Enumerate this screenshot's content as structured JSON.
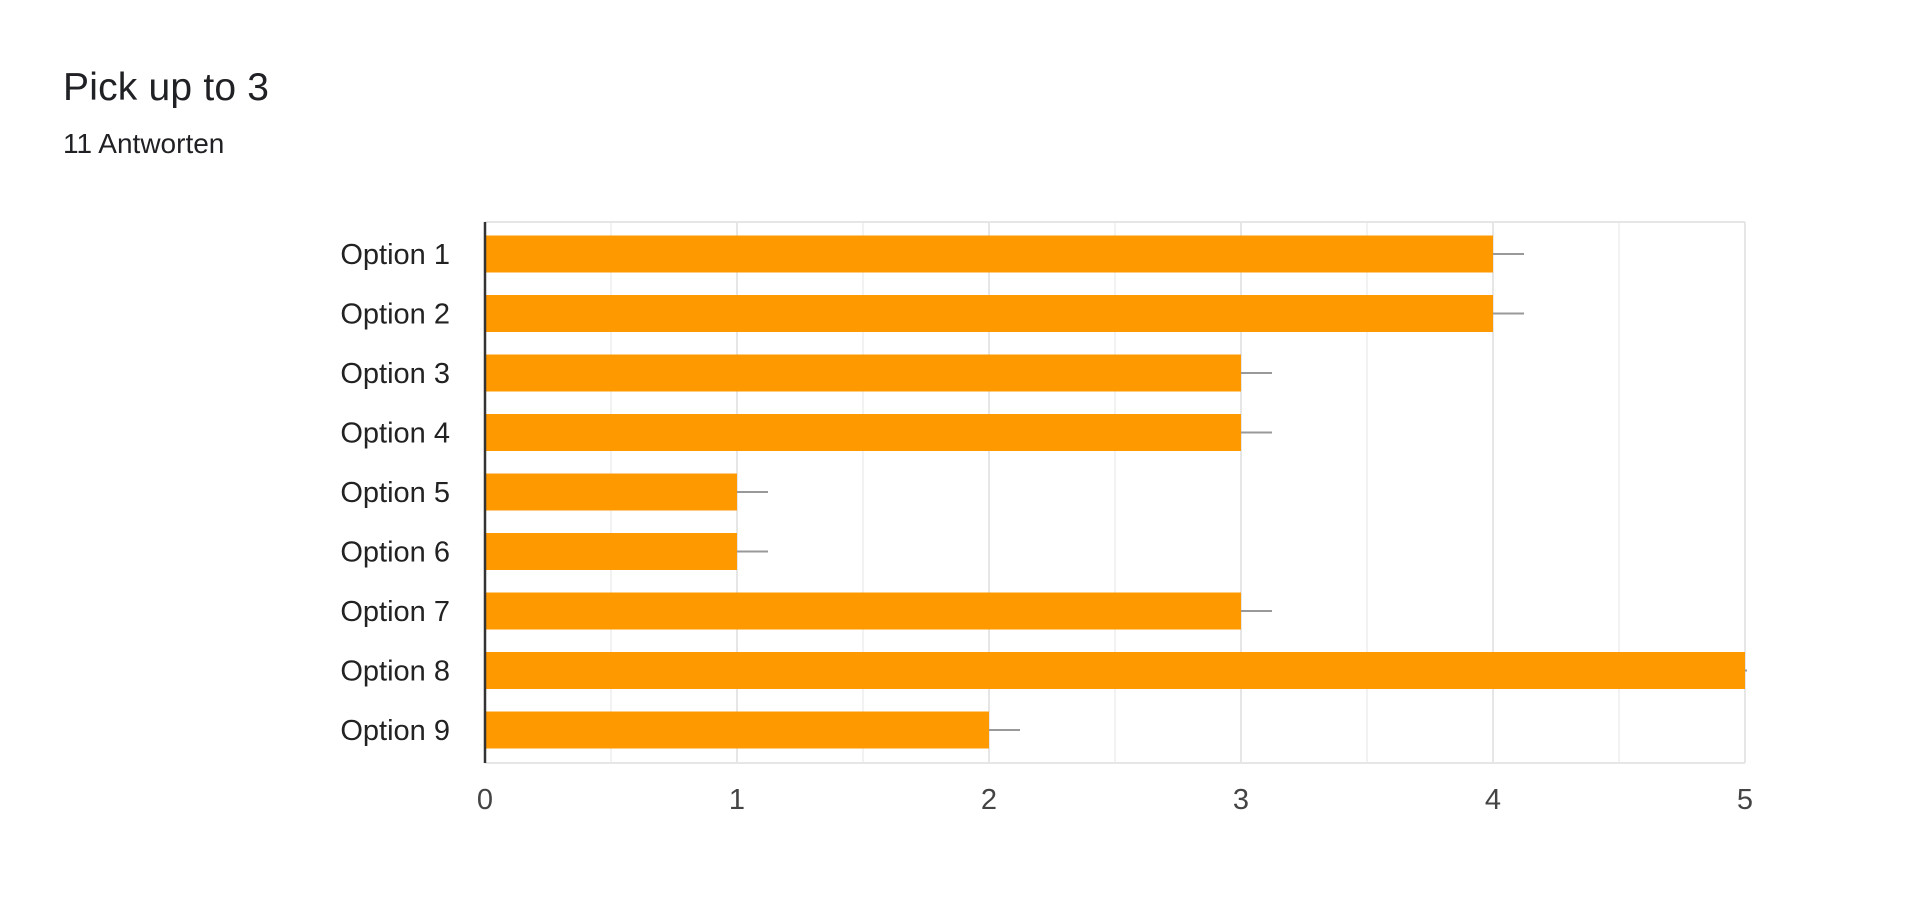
{
  "header": {
    "title": "Pick up to 3",
    "response_count": "11 Antworten"
  },
  "colors": {
    "bar": "#FF9900",
    "gridline_major": "#e6e6e6",
    "gridline_minor": "#f2f2f2",
    "baseline": "#333333",
    "whisker": "#999999"
  },
  "chart_data": {
    "type": "bar",
    "orientation": "horizontal",
    "categories": [
      "Option 1",
      "Option 2",
      "Option 3",
      "Option 4",
      "Option 5",
      "Option 6",
      "Option 7",
      "Option 8",
      "Option 9"
    ],
    "values": [
      4,
      4,
      3,
      3,
      1,
      1,
      3,
      5,
      2
    ],
    "xlim": [
      0,
      5
    ],
    "xticks": [
      "0",
      "1",
      "2",
      "3",
      "4",
      "5"
    ],
    "grid": true,
    "legend": "none"
  }
}
